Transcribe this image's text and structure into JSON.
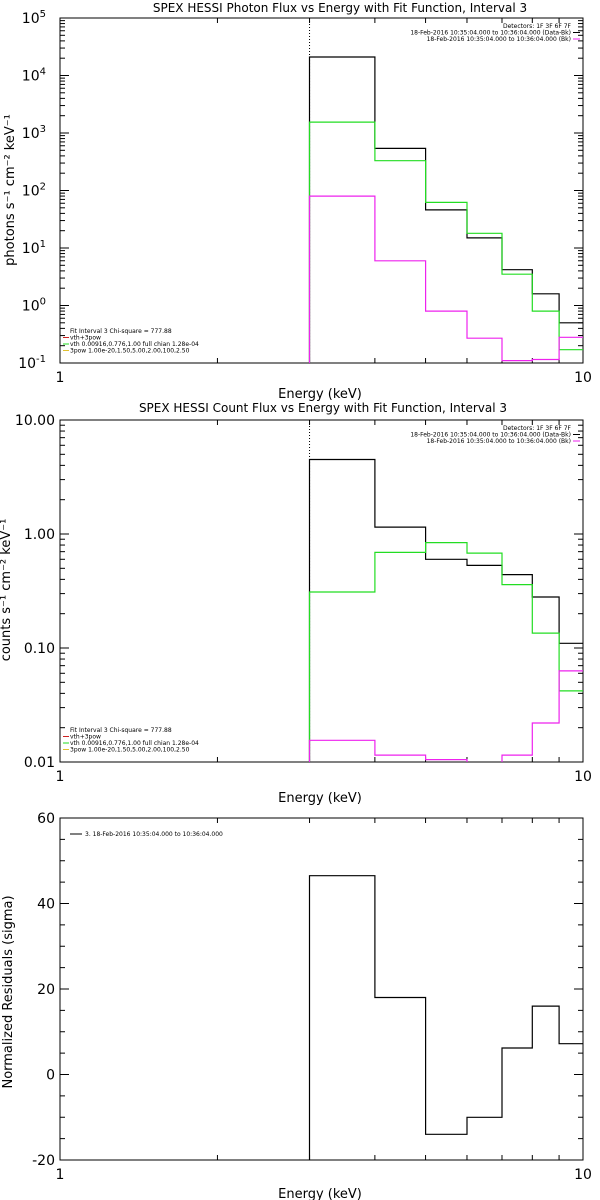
{
  "chart_data": [
    {
      "type": "line",
      "title": "SPEX HESSI Photon Flux vs Energy with Fit Function, Interval 3",
      "xlabel": "Energy (keV)",
      "ylabel": "photons s⁻¹ cm⁻² keV⁻¹",
      "xscale": "log",
      "yscale": "log",
      "xlim": [
        1,
        10
      ],
      "ylim": [
        0.1,
        100000
      ],
      "x_tick_labels": [
        "1",
        "10"
      ],
      "y_tick_labels": [
        {
          "v": 0.1,
          "base": "10",
          "exp": "-1"
        },
        {
          "v": 1,
          "base": "10",
          "exp": "0"
        },
        {
          "v": 10,
          "base": "10",
          "exp": "1"
        },
        {
          "v": 100,
          "base": "10",
          "exp": "2"
        },
        {
          "v": 1000,
          "base": "10",
          "exp": "3"
        },
        {
          "v": 10000,
          "base": "10",
          "exp": "4"
        },
        {
          "v": 100000,
          "base": "10",
          "exp": "5"
        }
      ],
      "marker_line_x": 3,
      "bin_edges": [
        3,
        4,
        5,
        6,
        7,
        8,
        9,
        10
      ],
      "series": [
        {
          "id": "data",
          "color": "#000000",
          "values": [
            21000,
            540,
            46,
            15,
            4.2,
            1.6,
            0.5
          ]
        },
        {
          "id": "vth",
          "color": "#22dd22",
          "values": [
            1550,
            330,
            62,
            18,
            3.5,
            0.8,
            0.17
          ]
        },
        {
          "id": "bk",
          "color": "#ee22ee",
          "values": [
            80,
            6,
            0.8,
            0.27,
            0.11,
            0.115,
            0.28
          ]
        }
      ],
      "legend_top_right": [
        {
          "text": "Detectors: 1F 3F 6F 7F",
          "color": "#000000"
        },
        {
          "text": "18-Feb-2016 10:35:04.000 to 10:36:04.000 (Data-Bk)",
          "color": "#000000"
        },
        {
          "text": "18-Feb-2016 10:35:04.000 to 10:36:04.000 (Bk)",
          "color": "#ee22ee"
        }
      ],
      "legend_bottom_left": [
        {
          "text": "Fit Interval 3   Chi-square = 777.88",
          "color": ""
        },
        {
          "text": "vth+3pow",
          "color": "#cc2222"
        },
        {
          "text": "vth 0.00916,0.776,1.00  full chian 1.28e-04",
          "color": "#22dd22"
        },
        {
          "text": "3pow 1.00e-20,1.50,5.00,2.00,100,2.50",
          "color": "#e0c030"
        }
      ]
    },
    {
      "type": "line",
      "title": "SPEX HESSI Count Flux vs Energy with Fit Function, Interval 3",
      "xlabel": "Energy (keV)",
      "ylabel": "counts s⁻¹ cm⁻² keV⁻¹",
      "xscale": "log",
      "yscale": "log",
      "xlim": [
        1,
        10
      ],
      "ylim": [
        0.01,
        10
      ],
      "x_tick_labels": [
        "1",
        "10"
      ],
      "y_tick_labels": [
        {
          "v": 0.01,
          "base": "0.01",
          "exp": ""
        },
        {
          "v": 0.1,
          "base": "0.10",
          "exp": ""
        },
        {
          "v": 1,
          "base": "1.00",
          "exp": ""
        },
        {
          "v": 10,
          "base": "10.00",
          "exp": ""
        }
      ],
      "marker_line_x": 3,
      "bin_edges": [
        3,
        4,
        5,
        6,
        7,
        8,
        9,
        10
      ],
      "series": [
        {
          "id": "data",
          "color": "#000000",
          "values": [
            4.5,
            1.15,
            0.6,
            0.53,
            0.44,
            0.28,
            0.11
          ]
        },
        {
          "id": "vth",
          "color": "#22dd22",
          "values": [
            0.31,
            0.69,
            0.84,
            0.68,
            0.36,
            0.135,
            0.042
          ]
        },
        {
          "id": "bk",
          "color": "#ee22ee",
          "values": [
            0.0155,
            0.0115,
            0.0105,
            0.0098,
            0.0115,
            0.022,
            0.063
          ]
        }
      ],
      "legend_top_right": [
        {
          "text": "Detectors: 1F 3F 6F 7F",
          "color": "#000000"
        },
        {
          "text": "18-Feb-2016 10:35:04.000 to 10:36:04.000 (Data-Bk)",
          "color": "#000000"
        },
        {
          "text": "18-Feb-2016 10:35:04.000 to 10:36:04.000 (Bk)",
          "color": "#ee22ee"
        }
      ],
      "legend_bottom_left": [
        {
          "text": "Fit Interval 3   Chi-square = 777.88",
          "color": ""
        },
        {
          "text": "vth+3pow",
          "color": "#cc2222"
        },
        {
          "text": "vth 0.00916,0.776,1.00  full chian 1.28e-04",
          "color": "#22dd22"
        },
        {
          "text": "3pow 1.00e-20,1.50,5.00,2.00,100,2.50",
          "color": "#e0c030"
        }
      ]
    },
    {
      "type": "line",
      "title": "",
      "xlabel": "Energy (keV)",
      "ylabel": "Normalized Residuals (sigma)",
      "xscale": "log",
      "yscale": "linear",
      "xlim": [
        1,
        10
      ],
      "ylim": [
        -20,
        60
      ],
      "x_tick_labels": [
        "1",
        "10"
      ],
      "y_tick_labels": [
        {
          "v": -20,
          "base": "-20",
          "exp": ""
        },
        {
          "v": 0,
          "base": "0",
          "exp": ""
        },
        {
          "v": 20,
          "base": "20",
          "exp": ""
        },
        {
          "v": 40,
          "base": "40",
          "exp": ""
        },
        {
          "v": 60,
          "base": "60",
          "exp": ""
        }
      ],
      "marker_line_x": null,
      "bin_edges": [
        3,
        4,
        5,
        6,
        7,
        8,
        9,
        10
      ],
      "series": [
        {
          "id": "residuals",
          "color": "#000000",
          "values": [
            46.5,
            18,
            -14,
            -10,
            6.2,
            16,
            7.2
          ]
        }
      ],
      "legend_top_left": [
        {
          "text": "3. 18-Feb-2016 10:35:04.000 to 10:36:04.000",
          "color": "#000000"
        }
      ]
    }
  ]
}
